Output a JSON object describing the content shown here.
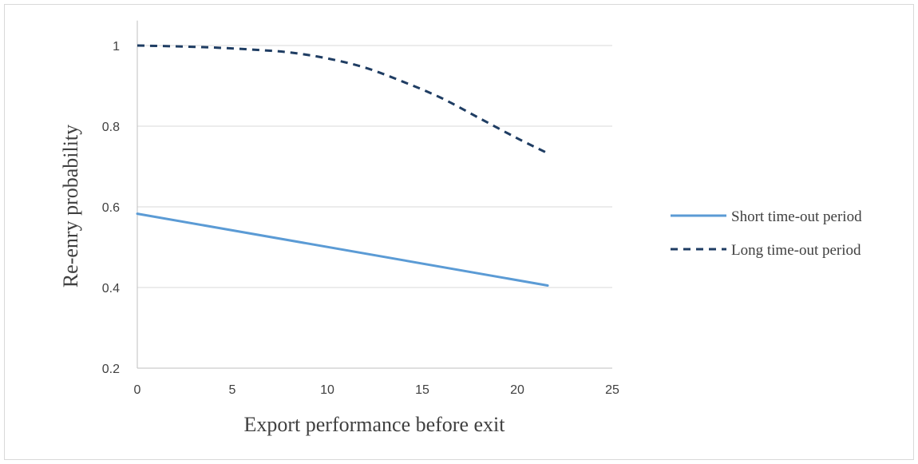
{
  "chart_data": {
    "type": "line",
    "title": "",
    "xlabel": "Export performance before exit",
    "ylabel": "Re-enry probability",
    "xlim": [
      0,
      25
    ],
    "ylim": [
      0.2,
      1.05
    ],
    "x_ticks": [
      0,
      5,
      10,
      15,
      20,
      25
    ],
    "y_ticks": [
      0.2,
      0.4,
      0.6,
      0.8,
      1
    ],
    "x_tick_labels": [
      "0",
      "5",
      "10",
      "15",
      "20",
      "25"
    ],
    "y_tick_labels": [
      "0.2",
      "0.4",
      "0.6",
      "0.8",
      "1"
    ],
    "grid": "horizontal",
    "legend_position": "right",
    "series": [
      {
        "name": "Short time-out period",
        "color": "#5b9bd5",
        "style": "solid",
        "x": [
          0,
          21.6
        ],
        "y": [
          0.583,
          0.405
        ]
      },
      {
        "name": "Long time-out period",
        "color": "#1f3d63",
        "style": "dashed",
        "x": [
          0,
          2,
          4,
          6,
          8,
          10,
          12,
          14,
          16,
          18,
          20,
          21.6
        ],
        "y": [
          1.0,
          0.998,
          0.995,
          0.99,
          0.983,
          0.968,
          0.945,
          0.91,
          0.87,
          0.82,
          0.77,
          0.733
        ]
      }
    ]
  }
}
